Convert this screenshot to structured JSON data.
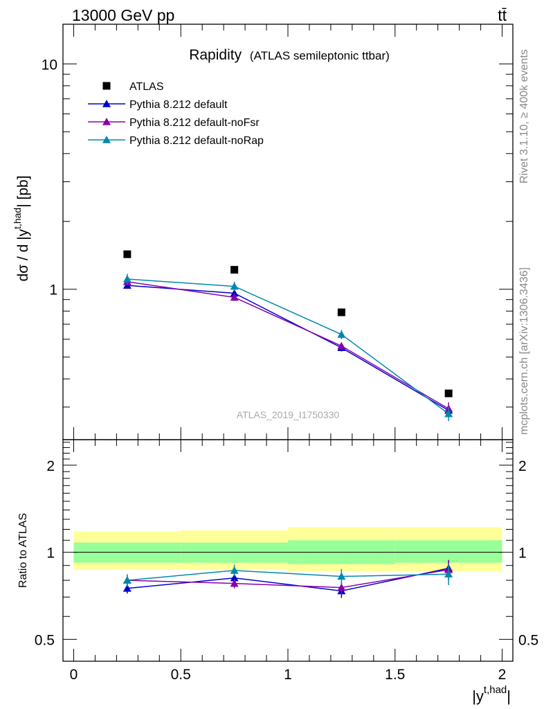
{
  "header": {
    "process": "13000 GeV pp",
    "final_state": "tt̄"
  },
  "side_labels": {
    "rivet": "Rivet 3.1.10, ≥ 400k events",
    "mcplots": "mcplots.cern.ch [arXiv:1306.3436]"
  },
  "analysis_id": "ATLAS_2019_I1750330",
  "colors": {
    "atlas": "#000000",
    "default": "#0000cc",
    "noFsr": "#8800aa",
    "noRap": "#0088aa",
    "band_outer": "#ffff99",
    "band_inner": "#99ff99"
  },
  "chart_data": [
    {
      "type": "scatter",
      "title": "Rapidity",
      "subtitle": "(ATLAS semileptonic ttbar)",
      "ylabel": "dσ / d |y",
      "ylabel_sup": "t,had",
      "ylabel_tail": "| [pb]",
      "yscale": "log",
      "ylim": [
        0.215,
        15
      ],
      "xlim": [
        -0.05,
        2.05
      ],
      "ytick_labels": [
        "1",
        "10"
      ],
      "legend_position": "top-left",
      "x": [
        0.25,
        0.75,
        1.25,
        1.75
      ],
      "series": [
        {
          "name": "ATLAS",
          "marker": "square",
          "values": [
            1.43,
            1.22,
            0.79,
            0.345
          ]
        },
        {
          "name": "Pythia 8.212 default",
          "marker": "triangle",
          "values": [
            1.04,
            0.96,
            0.55,
            0.29
          ],
          "errors": [
            0.03,
            0.03,
            0.02,
            0.015
          ]
        },
        {
          "name": "Pythia 8.212 default-noFsr",
          "marker": "triangle",
          "values": [
            1.08,
            0.92,
            0.56,
            0.295
          ],
          "errors": [
            0.03,
            0.03,
            0.02,
            0.02
          ]
        },
        {
          "name": "Pythia 8.212 default-noRap",
          "marker": "triangle",
          "values": [
            1.11,
            1.03,
            0.63,
            0.28
          ],
          "errors": [
            0.06,
            0.05,
            0.03,
            0.02
          ]
        }
      ]
    },
    {
      "type": "scatter",
      "ylabel": "Ratio to ATLAS",
      "xlabel": "|y",
      "xlabel_sup": "t,had",
      "xlabel_tail": "|",
      "yscale": "log",
      "ylim": [
        0.42,
        2.45
      ],
      "xlim": [
        -0.05,
        2.05
      ],
      "xtick_labels": [
        "0",
        "0.5",
        "1",
        "1.5",
        "2"
      ],
      "ytick_labels": [
        "0.5",
        "1",
        "2"
      ],
      "x_edges": [
        0,
        0.5,
        1,
        1.5,
        2
      ],
      "band_outer": [
        [
          0.87,
          1.18
        ],
        [
          0.87,
          1.19
        ],
        [
          0.86,
          1.22
        ],
        [
          0.86,
          1.22
        ]
      ],
      "band_inner": [
        [
          0.92,
          1.08
        ],
        [
          0.92,
          1.08
        ],
        [
          0.91,
          1.1
        ],
        [
          0.92,
          1.1
        ]
      ],
      "x": [
        0.25,
        0.75,
        1.25,
        1.75
      ],
      "series": [
        {
          "name": "Pythia 8.212 default",
          "values": [
            0.75,
            0.815,
            0.735,
            0.88
          ],
          "errors": [
            0.03,
            0.03,
            0.04,
            0.06
          ]
        },
        {
          "name": "Pythia 8.212 default-noFsr",
          "values": [
            0.8,
            0.78,
            0.755,
            0.87
          ],
          "errors": [
            0.03,
            0.03,
            0.04,
            0.07
          ]
        },
        {
          "name": "Pythia 8.212 default-noRap",
          "values": [
            0.8,
            0.865,
            0.825,
            0.84
          ],
          "errors": [
            0.04,
            0.04,
            0.05,
            0.07
          ]
        }
      ]
    }
  ]
}
